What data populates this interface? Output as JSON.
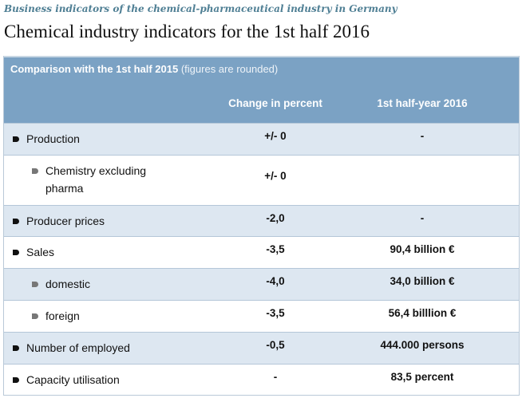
{
  "kicker": "Business indicators of the chemical-pharmaceutical industry in Germany",
  "title": "Chemical industry indicators for the 1st half 2016",
  "table": {
    "caption_bold": "Comparison with the 1st half 2015",
    "caption_note": "(figures are rounded)",
    "columns": [
      "Change in percent",
      "1st half-year 2016"
    ],
    "rows": [
      {
        "label": "Production",
        "change": "+/- 0",
        "value": "-",
        "level": 0
      },
      {
        "label": "Chemistry excluding pharma",
        "change": "+/- 0",
        "value": "",
        "level": 1
      },
      {
        "label": "Producer prices",
        "change": "-2,0",
        "value": "-",
        "level": 0
      },
      {
        "label": "Sales",
        "change": "-3,5",
        "value": "90,4 billion €",
        "level": 0
      },
      {
        "label": "domestic",
        "change": "-4,0",
        "value": "34,0 billion €",
        "level": 1
      },
      {
        "label": "foreign",
        "change": "-3,5",
        "value": "56,4 billlion €",
        "level": 1
      },
      {
        "label": "Number of employed",
        "change": "-0,5",
        "value": "444.000 persons",
        "level": 0
      },
      {
        "label": "Capacity utilisation",
        "change": "-",
        "value": "83,5 percent",
        "level": 0
      }
    ]
  },
  "colors": {
    "header": "#7ba2c4",
    "alt_row": "#dde7f1",
    "kicker": "#4f7f94"
  }
}
